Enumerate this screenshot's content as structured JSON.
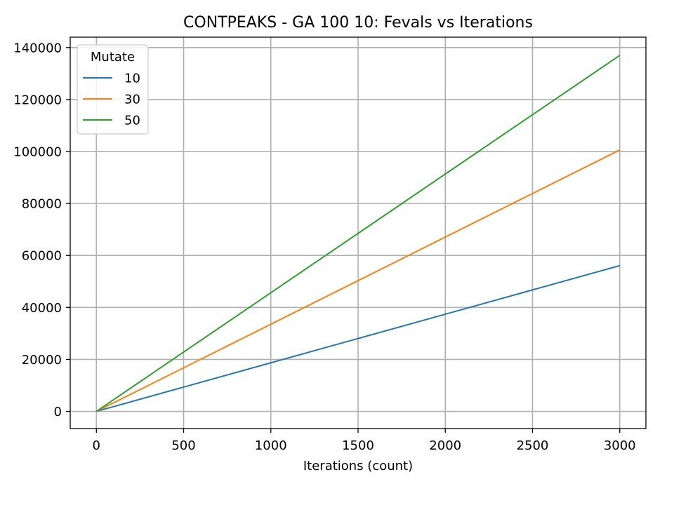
{
  "chart_data": {
    "type": "line",
    "title": "CONTPEAKS - GA 100 10: Fevals vs Iterations",
    "xlabel": "Iterations (count)",
    "ylabel": "",
    "xlim": [
      -150,
      3150
    ],
    "ylim": [
      -6600,
      144000
    ],
    "xticks": [
      0,
      500,
      1000,
      1500,
      2000,
      2500,
      3000
    ],
    "yticks": [
      0,
      20000,
      40000,
      60000,
      80000,
      100000,
      120000,
      140000
    ],
    "grid": true,
    "legend": {
      "title": "Mutate",
      "position": "top-left"
    },
    "x": [
      0,
      3000
    ],
    "series": [
      {
        "name": "10",
        "color": "#1f77b4",
        "values": [
          0,
          56100
        ]
      },
      {
        "name": "30",
        "color": "#ff7f0e",
        "values": [
          0,
          100600
        ]
      },
      {
        "name": "50",
        "color": "#2ca02c",
        "values": [
          0,
          137000
        ]
      }
    ]
  }
}
